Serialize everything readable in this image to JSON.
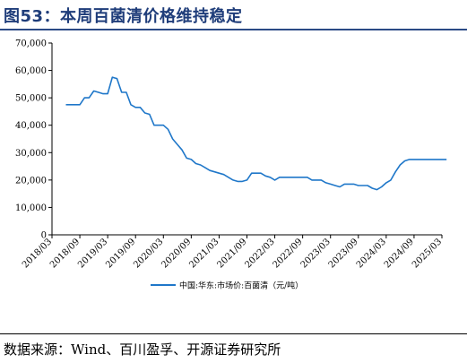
{
  "title": "图53：本周百菌清价格维持稳定",
  "source": "数据来源：Wind、百川盈孚、开源证券研究所",
  "colors": {
    "line": "#1f77c9",
    "title": "#1f3d7a",
    "rule": "#2b4a86"
  },
  "chart_data": {
    "type": "line",
    "ylim": [
      0,
      70000
    ],
    "yticks": [
      "0",
      "10,000",
      "20,000",
      "30,000",
      "40,000",
      "50,000",
      "60,000",
      "70,000"
    ],
    "xticks": [
      "2018/03",
      "2018/09",
      "2019/03",
      "2019/09",
      "2020/03",
      "2020/09",
      "2021/03",
      "2021/09",
      "2022/03",
      "2022/09",
      "2023/03",
      "2023/09",
      "2024/03",
      "2024/09",
      "2025/03"
    ],
    "legend": "中国:华东:市场价:百菌清（元/吨）",
    "legend_position": "bottom-center",
    "grid": false,
    "series": [
      {
        "name": "中国:华东:市场价:百菌清（元/吨）",
        "x": [
          "2018/06",
          "2018/09",
          "2018/10",
          "2018/11",
          "2018/12",
          "2019/01",
          "2019/02",
          "2019/03",
          "2019/04",
          "2019/05",
          "2019/06",
          "2019/07",
          "2019/08",
          "2019/09",
          "2019/10",
          "2019/11",
          "2019/12",
          "2020/01",
          "2020/02",
          "2020/03",
          "2020/04",
          "2020/05",
          "2020/06",
          "2020/07",
          "2020/08",
          "2020/09",
          "2020/10",
          "2020/11",
          "2020/12",
          "2021/01",
          "2021/02",
          "2021/03",
          "2021/04",
          "2021/05",
          "2021/06",
          "2021/07",
          "2021/08",
          "2021/09",
          "2021/10",
          "2021/11",
          "2021/12",
          "2022/01",
          "2022/02",
          "2022/03",
          "2022/04",
          "2022/05",
          "2022/06",
          "2022/07",
          "2022/08",
          "2022/09",
          "2022/10",
          "2022/11",
          "2022/12",
          "2023/01",
          "2023/02",
          "2023/03",
          "2023/04",
          "2023/05",
          "2023/06",
          "2023/07",
          "2023/08",
          "2023/09",
          "2023/10",
          "2023/11",
          "2023/12",
          "2024/01",
          "2024/02",
          "2024/03",
          "2024/04",
          "2024/05",
          "2024/06",
          "2024/07",
          "2024/08",
          "2024/09",
          "2024/10",
          "2024/11",
          "2024/12",
          "2025/01",
          "2025/02",
          "2025/03",
          "2025/04"
        ],
        "y": [
          47500,
          47500,
          50000,
          50000,
          52500,
          52000,
          51500,
          51500,
          57500,
          57000,
          52000,
          52000,
          47500,
          46500,
          46500,
          44500,
          44000,
          40000,
          40000,
          40000,
          38500,
          35000,
          33000,
          31000,
          28000,
          27500,
          26000,
          25500,
          24500,
          23500,
          23000,
          22500,
          22000,
          21000,
          20000,
          19500,
          19500,
          20000,
          22500,
          22500,
          22500,
          21500,
          21000,
          20000,
          21000,
          21000,
          21000,
          21000,
          21000,
          21000,
          21000,
          20000,
          20000,
          20000,
          19000,
          18500,
          18000,
          17500,
          18500,
          18500,
          18500,
          18000,
          18000,
          18000,
          17000,
          16500,
          17500,
          19000,
          20000,
          23000,
          25500,
          27000,
          27500,
          27500,
          27500,
          27500,
          27500,
          27500,
          27500,
          27500,
          27500
        ]
      }
    ]
  }
}
